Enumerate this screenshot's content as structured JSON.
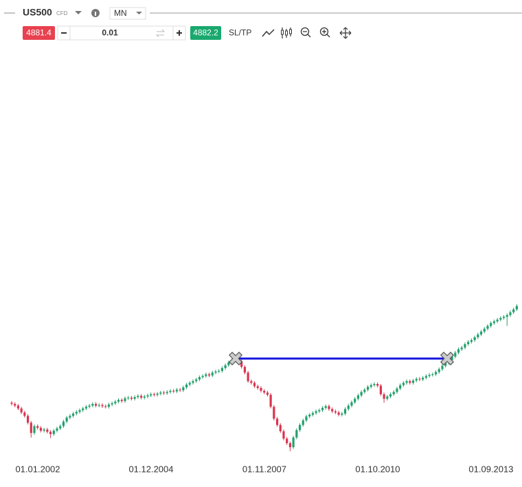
{
  "toolbar": {
    "symbol": "US500",
    "symbol_type": "CFD",
    "timeframe": "MN",
    "sell_price": "4881.4",
    "volume": "0.01",
    "buy_price": "4882.2",
    "sltp": "SL/TP"
  },
  "chart_data": {
    "type": "candlestick",
    "up_color": "#22a06b",
    "down_color": "#d9344f",
    "ylim": [
      500,
      4300
    ],
    "categories": [
      null,
      null,
      null,
      null,
      null,
      null,
      null,
      "01.01.2002",
      null,
      null,
      null,
      null,
      null,
      null,
      null,
      null,
      null,
      null,
      null,
      null,
      null,
      null,
      null,
      null,
      null,
      null,
      null,
      null,
      null,
      null,
      null,
      null,
      null,
      null,
      null,
      null,
      null,
      null,
      null,
      null,
      null,
      null,
      "01.12.2004",
      null,
      null,
      null,
      null,
      null,
      null,
      null,
      null,
      null,
      null,
      null,
      null,
      null,
      null,
      null,
      null,
      null,
      null,
      null,
      null,
      null,
      null,
      null,
      null,
      null,
      null,
      null,
      null,
      null,
      null,
      null,
      null,
      null,
      null,
      "01.11.2007",
      null,
      null,
      null,
      null,
      null,
      null,
      null,
      null,
      null,
      null,
      null,
      null,
      null,
      null,
      null,
      null,
      null,
      null,
      null,
      null,
      null,
      null,
      null,
      null,
      null,
      null,
      null,
      null,
      null,
      null,
      null,
      null,
      null,
      null,
      "01.10.2010",
      null,
      null,
      null,
      null,
      null,
      null,
      null,
      null,
      null,
      null,
      null,
      null,
      null,
      null,
      null,
      null,
      null,
      null,
      null,
      null,
      null,
      null,
      null,
      null,
      null,
      null,
      null,
      null,
      null,
      null,
      null,
      null,
      null,
      null,
      "01.09.2013",
      null,
      null,
      null,
      null,
      null,
      null,
      null,
      null,
      null
    ],
    "open": [
      1125,
      1115,
      1100,
      1075,
      1040,
      1010,
      950,
      860,
      920,
      905,
      880,
      890,
      870,
      850,
      880,
      900,
      920,
      960,
      995,
      1010,
      1030,
      1045,
      1060,
      1075,
      1090,
      1100,
      1115,
      1100,
      1105,
      1095,
      1090,
      1110,
      1120,
      1135,
      1150,
      1140,
      1165,
      1170,
      1160,
      1175,
      1185,
      1170,
      1180,
      1190,
      1200,
      1195,
      1205,
      1215,
      1210,
      1220,
      1230,
      1225,
      1240,
      1235,
      1260,
      1285,
      1300,
      1315,
      1330,
      1350,
      1360,
      1375,
      1365,
      1390,
      1400,
      1405,
      1430,
      1455,
      1480,
      1495,
      1525,
      1490,
      1440,
      1390,
      1315,
      1300,
      1270,
      1255,
      1230,
      1215,
      1195,
      1090,
      985,
      930,
      875,
      810,
      770,
      735,
      820,
      885,
      930,
      970,
      1005,
      1020,
      1035,
      1050,
      1060,
      1080,
      1095,
      1070,
      1050,
      1040,
      1020,
      1030,
      1070,
      1100,
      1130,
      1160,
      1190,
      1220,
      1240,
      1265,
      1280,
      1290,
      1275,
      1200,
      1160,
      1180,
      1200,
      1220,
      1250,
      1280,
      1300,
      1315,
      1300,
      1320,
      1335,
      1330,
      1345,
      1360,
      1370,
      1375,
      1395,
      1420,
      1450,
      1475,
      1500,
      1530,
      1565,
      1595,
      1610,
      1640,
      1660,
      1675,
      1700,
      1725,
      1750,
      1775,
      1800,
      1825,
      1840,
      1855,
      1870,
      1880,
      1895,
      1920,
      1945
    ],
    "high": [
      1140,
      1130,
      1115,
      1090,
      1055,
      1025,
      965,
      935,
      935,
      920,
      905,
      905,
      885,
      895,
      915,
      935,
      975,
      1010,
      1025,
      1045,
      1060,
      1075,
      1090,
      1105,
      1115,
      1130,
      1130,
      1120,
      1120,
      1110,
      1125,
      1135,
      1150,
      1165,
      1165,
      1180,
      1185,
      1185,
      1190,
      1200,
      1200,
      1195,
      1205,
      1215,
      1215,
      1220,
      1230,
      1230,
      1235,
      1245,
      1245,
      1255,
      1255,
      1275,
      1300,
      1315,
      1330,
      1345,
      1365,
      1375,
      1390,
      1390,
      1405,
      1415,
      1420,
      1445,
      1470,
      1495,
      1510,
      1540,
      1540,
      1505,
      1455,
      1405,
      1330,
      1315,
      1285,
      1270,
      1245,
      1230,
      1210,
      1105,
      1000,
      945,
      890,
      825,
      785,
      835,
      900,
      945,
      985,
      1020,
      1035,
      1050,
      1065,
      1075,
      1095,
      1110,
      1110,
      1085,
      1065,
      1055,
      1045,
      1085,
      1115,
      1145,
      1175,
      1205,
      1235,
      1255,
      1280,
      1295,
      1305,
      1305,
      1290,
      1215,
      1195,
      1215,
      1235,
      1265,
      1295,
      1315,
      1330,
      1330,
      1335,
      1350,
      1350,
      1360,
      1375,
      1385,
      1390,
      1410,
      1435,
      1465,
      1490,
      1515,
      1545,
      1580,
      1610,
      1625,
      1655,
      1675,
      1690,
      1715,
      1740,
      1765,
      1790,
      1815,
      1840,
      1855,
      1870,
      1885,
      1895,
      1910,
      1935,
      1960,
      1990
    ],
    "low": [
      1100,
      1085,
      1060,
      1025,
      995,
      935,
      820,
      845,
      890,
      865,
      865,
      855,
      815,
      835,
      865,
      885,
      905,
      945,
      980,
      995,
      1015,
      1030,
      1045,
      1060,
      1075,
      1085,
      1085,
      1085,
      1080,
      1075,
      1075,
      1095,
      1105,
      1120,
      1125,
      1125,
      1150,
      1145,
      1145,
      1160,
      1155,
      1155,
      1165,
      1175,
      1180,
      1180,
      1190,
      1195,
      1195,
      1205,
      1210,
      1210,
      1220,
      1220,
      1245,
      1270,
      1285,
      1300,
      1315,
      1335,
      1345,
      1350,
      1350,
      1375,
      1385,
      1390,
      1415,
      1440,
      1465,
      1480,
      1475,
      1425,
      1375,
      1300,
      1285,
      1255,
      1240,
      1215,
      1200,
      1180,
      1075,
      970,
      915,
      860,
      795,
      755,
      700,
      720,
      805,
      870,
      915,
      955,
      990,
      1005,
      1020,
      1035,
      1045,
      1065,
      1055,
      1035,
      1025,
      1005,
      1005,
      1015,
      1055,
      1085,
      1115,
      1145,
      1175,
      1205,
      1225,
      1250,
      1265,
      1260,
      1185,
      1125,
      1145,
      1165,
      1185,
      1205,
      1235,
      1265,
      1285,
      1285,
      1285,
      1305,
      1315,
      1315,
      1330,
      1345,
      1355,
      1360,
      1380,
      1405,
      1435,
      1460,
      1485,
      1515,
      1550,
      1580,
      1595,
      1625,
      1645,
      1660,
      1685,
      1710,
      1735,
      1760,
      1785,
      1810,
      1825,
      1840,
      1855,
      1800,
      1880,
      1905,
      1930
    ],
    "close": [
      1115,
      1100,
      1075,
      1040,
      1010,
      950,
      860,
      920,
      905,
      880,
      890,
      870,
      850,
      880,
      900,
      920,
      960,
      995,
      1010,
      1030,
      1045,
      1060,
      1075,
      1090,
      1100,
      1115,
      1100,
      1105,
      1095,
      1090,
      1110,
      1120,
      1135,
      1150,
      1140,
      1165,
      1170,
      1160,
      1175,
      1185,
      1170,
      1180,
      1190,
      1200,
      1195,
      1205,
      1215,
      1210,
      1220,
      1230,
      1225,
      1240,
      1235,
      1260,
      1285,
      1300,
      1315,
      1330,
      1350,
      1360,
      1375,
      1365,
      1390,
      1400,
      1405,
      1430,
      1455,
      1480,
      1495,
      1525,
      1490,
      1440,
      1390,
      1315,
      1300,
      1270,
      1255,
      1230,
      1215,
      1195,
      1090,
      985,
      930,
      875,
      810,
      770,
      735,
      820,
      885,
      930,
      970,
      1005,
      1020,
      1035,
      1050,
      1060,
      1080,
      1095,
      1070,
      1050,
      1040,
      1020,
      1030,
      1070,
      1100,
      1130,
      1160,
      1190,
      1220,
      1240,
      1265,
      1280,
      1290,
      1275,
      1200,
      1160,
      1180,
      1200,
      1220,
      1250,
      1280,
      1300,
      1315,
      1300,
      1320,
      1335,
      1330,
      1345,
      1360,
      1370,
      1375,
      1395,
      1420,
      1450,
      1475,
      1500,
      1530,
      1565,
      1595,
      1610,
      1640,
      1660,
      1675,
      1700,
      1725,
      1750,
      1775,
      1800,
      1825,
      1840,
      1855,
      1870,
      1880,
      1895,
      1920,
      1945,
      1975
    ]
  }
}
